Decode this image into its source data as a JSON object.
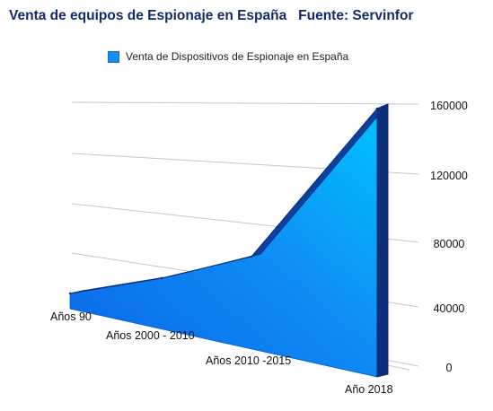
{
  "chart_data": {
    "type": "area",
    "title": "Venta de equipos de Espionaje en España   Fuente: Servinfor",
    "categories": [
      "Años 90",
      "Años 2000 - 2010",
      "Años 2010 -2015",
      "Año 2018"
    ],
    "series": [
      {
        "name": "Venta de Dispositivos de Espionaje en España",
        "values": [
          4000,
          12000,
          32000,
          160000
        ]
      }
    ],
    "yticks": [
      0,
      40000,
      80000,
      120000,
      160000
    ],
    "ylim": [
      0,
      160000
    ],
    "legend": "top",
    "grid": true,
    "colors": {
      "fill_light": "#00b7ff",
      "fill_dark": "#0a5fe0",
      "edge": "#0b2f7a"
    }
  }
}
